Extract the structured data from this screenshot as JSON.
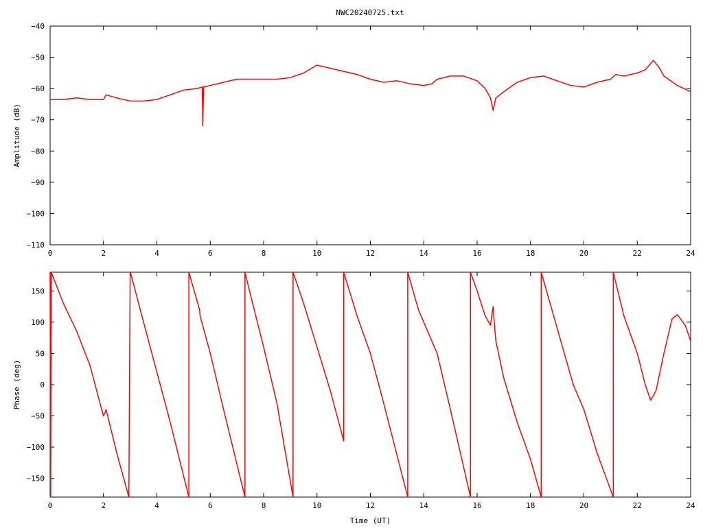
{
  "title": "NWC20240725.txt",
  "chart_data": [
    {
      "type": "line",
      "title": "NWC20240725.txt",
      "xlabel": "",
      "ylabel": "Amplitude (dB)",
      "xlim": [
        0,
        24
      ],
      "ylim": [
        -110,
        -40
      ],
      "xticks": [
        0,
        2,
        4,
        6,
        8,
        10,
        12,
        14,
        16,
        18,
        20,
        22,
        24
      ],
      "xtick_labels": [
        "0",
        "2",
        "4",
        "6",
        "8",
        "10",
        "12",
        "14",
        "16",
        "18",
        "20",
        "22",
        "24"
      ],
      "yticks": [
        -110,
        -100,
        -90,
        -80,
        -70,
        -60,
        -50,
        -40
      ],
      "ytick_labels": [
        "−110",
        "−100",
        "−90",
        "−80",
        "−70",
        "−60",
        "−50",
        "−40"
      ],
      "grid": false,
      "line_color": "#ff0000",
      "series": [
        {
          "x": [
            0,
            0.5,
            1,
            1.5,
            2,
            2.1,
            2.5,
            3,
            3.5,
            4,
            4.5,
            5,
            5.5,
            5.7,
            5.72,
            5.75,
            6,
            6.5,
            7,
            7.5,
            8,
            8.5,
            9,
            9.5,
            10,
            10.5,
            11,
            11.5,
            12,
            12.5,
            13,
            13.5,
            14,
            14.3,
            14.5,
            15,
            15.5,
            16,
            16.3,
            16.5,
            16.6,
            16.7,
            17,
            17.5,
            18,
            18.5,
            19,
            19.5,
            20,
            20.5,
            21,
            21.2,
            21.5,
            22,
            22.3,
            22.6,
            22.8,
            23,
            23.5,
            24
          ],
          "y": [
            -63.5,
            -63.5,
            -63,
            -63.5,
            -63.5,
            -62,
            -63,
            -64,
            -64,
            -63.5,
            -62,
            -60.5,
            -60,
            -59.5,
            -72,
            -59.5,
            -59,
            -58,
            -57,
            -57,
            -57,
            -57,
            -56.5,
            -55,
            -52.5,
            -53.5,
            -54.5,
            -55.5,
            -57,
            -58,
            -57.5,
            -58.5,
            -59,
            -58.5,
            -57,
            -56,
            -56,
            -57.5,
            -60,
            -63,
            -67,
            -63,
            -61,
            -58,
            -56.5,
            -56,
            -57.5,
            -59,
            -59.5,
            -58,
            -57,
            -55.5,
            -56,
            -55,
            -54,
            -51,
            -53,
            -56,
            -59,
            -61
          ]
        }
      ]
    },
    {
      "type": "line",
      "title": "",
      "xlabel": "Time (UT)",
      "ylabel": "Phase (deg)",
      "xlim": [
        0,
        24
      ],
      "ylim": [
        -180,
        180
      ],
      "xticks": [
        0,
        2,
        4,
        6,
        8,
        10,
        12,
        14,
        16,
        18,
        20,
        22,
        24
      ],
      "xtick_labels": [
        "0",
        "2",
        "4",
        "6",
        "8",
        "10",
        "12",
        "14",
        "16",
        "18",
        "20",
        "22",
        "24"
      ],
      "yticks": [
        -150,
        -100,
        -50,
        0,
        50,
        100,
        150
      ],
      "ytick_labels": [
        "−150",
        "−100",
        "−50",
        "0",
        "50",
        "100",
        "150"
      ],
      "grid": false,
      "line_color": "#ff0000",
      "series": [
        {
          "x": [
            0,
            0.02,
            0.04,
            0.06,
            0.5,
            1,
            1.5,
            1.9,
            2,
            2.1,
            2.5,
            2.95,
            3.0,
            3.02,
            3.5,
            4,
            4.5,
            5.2,
            5.2,
            5.6,
            5.62,
            6,
            6.5,
            7.3,
            7.3,
            7.5,
            8,
            8.5,
            9.1,
            9.1,
            9.5,
            10,
            10.5,
            11,
            11,
            11.5,
            12,
            12.5,
            13.4,
            13.4,
            13.8,
            14.5,
            15,
            15.75,
            15.75,
            16,
            16.3,
            16.5,
            16.6,
            16.65,
            16.7,
            16.8,
            17,
            17.5,
            18,
            18.4,
            18.4,
            18.8,
            19.2,
            19.6,
            20,
            20.5,
            21.1,
            21.1,
            21.5,
            22,
            22.3,
            22.5,
            22.7,
            23,
            23.3,
            23.5,
            23.8,
            24
          ],
          "y": [
            180,
            -180,
            180,
            178,
            130,
            85,
            30,
            -35,
            -50,
            -40,
            -110,
            -180,
            180,
            178,
            100,
            20,
            -60,
            -180,
            180,
            120,
            110,
            50,
            -40,
            -180,
            180,
            145,
            60,
            -30,
            -180,
            180,
            130,
            60,
            -10,
            -90,
            180,
            110,
            50,
            -30,
            -180,
            180,
            120,
            50,
            -40,
            -180,
            180,
            150,
            110,
            95,
            125,
            95,
            70,
            50,
            10,
            -60,
            -120,
            -180,
            180,
            120,
            60,
            0,
            -40,
            -110,
            -180,
            180,
            110,
            50,
            0,
            -25,
            -10,
            50,
            105,
            112,
            95,
            70
          ]
        }
      ]
    }
  ]
}
